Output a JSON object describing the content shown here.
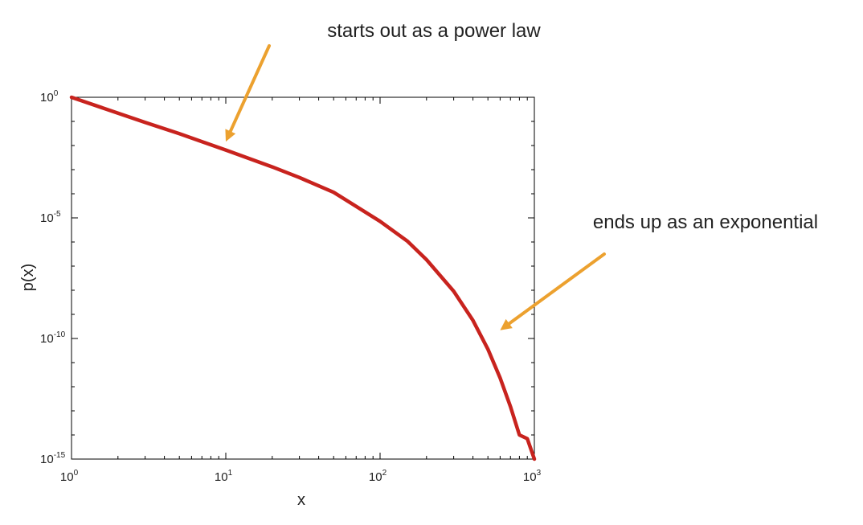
{
  "chart_data": {
    "type": "line",
    "xlabel": "x",
    "ylabel": "p(x)",
    "xscale": "log",
    "yscale": "log",
    "xlim": [
      1,
      1000
    ],
    "ylim": [
      1e-15,
      1
    ],
    "grid": false,
    "x_ticks": [
      {
        "base": "10",
        "exp": "0",
        "value": 1
      },
      {
        "base": "10",
        "exp": "1",
        "value": 10
      },
      {
        "base": "10",
        "exp": "2",
        "value": 100
      },
      {
        "base": "10",
        "exp": "3",
        "value": 1000
      }
    ],
    "y_ticks": [
      {
        "base": "10",
        "exp": "0",
        "value": 1
      },
      {
        "base": "10",
        "exp": "-5",
        "value": 1e-05
      },
      {
        "base": "10",
        "exp": "-10",
        "value": 1e-10
      },
      {
        "base": "10",
        "exp": "-15",
        "value": 1e-15
      }
    ],
    "series": [
      {
        "color": "#c8231e",
        "x": [
          1,
          2,
          3,
          5,
          10,
          20,
          30,
          50,
          100,
          150,
          200,
          300,
          400,
          500,
          600,
          700,
          800,
          900,
          1000
        ],
        "y": [
          1,
          0.22,
          0.091,
          0.031,
          0.0065,
          0.0013,
          0.00047,
          0.000115,
          7.2e-06,
          1.1e-06,
          1.85e-07,
          9.1e-09,
          5.6e-10,
          3.6e-11,
          2.3e-12,
          1.5e-13,
          1e-14,
          7e-15,
          1e-15
        ]
      }
    ],
    "annotations": [
      {
        "text": "starts out as a power law",
        "target": {
          "x": 10,
          "y": 0.0146
        }
      },
      {
        "text": "ends up as an exponential",
        "target": {
          "x": 600,
          "y": 2.2e-10
        }
      }
    ],
    "colors": {
      "curve": "#c8231e",
      "arrow": "#eca12f",
      "axis": "#000000",
      "text": "#222222"
    }
  }
}
